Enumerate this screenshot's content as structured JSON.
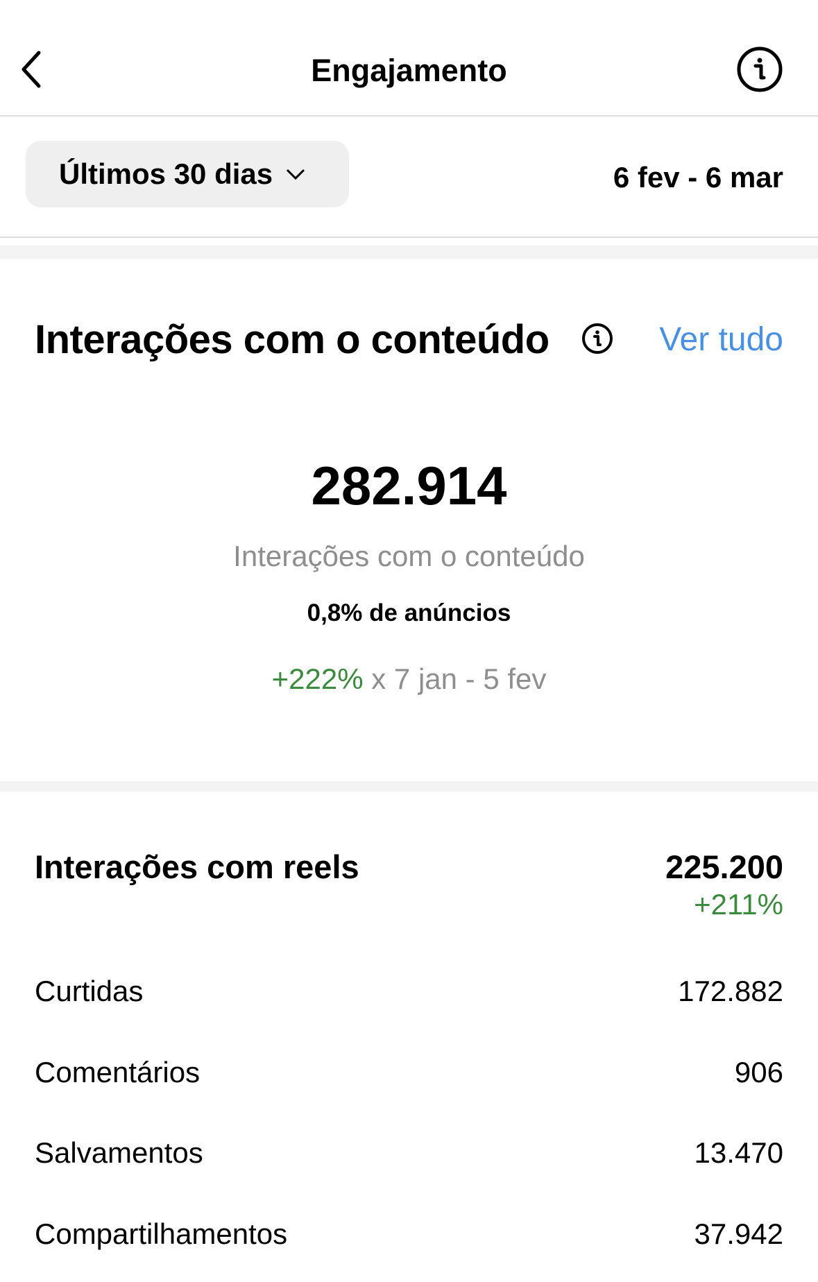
{
  "header": {
    "title": "Engajamento",
    "back_icon": "chevron-left-icon",
    "info_icon": "info-icon"
  },
  "filter": {
    "selected": "Últimos 30 dias",
    "date_range": "6 fev - 6 mar"
  },
  "content_section": {
    "title": "Interações com o conteúdo",
    "see_all": "Ver tudo",
    "total": "282.914",
    "total_label": "Interações com o conteúdo",
    "ads_share": "0,8% de anúncios",
    "change": "+222%",
    "compare": "x 7 jan - 5 fev"
  },
  "reels": {
    "label": "Interações com reels",
    "value": "225.200",
    "change": "+211%",
    "rows": [
      {
        "label": "Curtidas",
        "value": "172.882"
      },
      {
        "label": "Comentários",
        "value": "906"
      },
      {
        "label": "Salvamentos",
        "value": "13.470"
      },
      {
        "label": "Compartilhamentos",
        "value": "37.942"
      }
    ]
  },
  "colors": {
    "link": "#4a90e2",
    "positive": "#3b8a3e",
    "muted": "#8e8e8e"
  }
}
